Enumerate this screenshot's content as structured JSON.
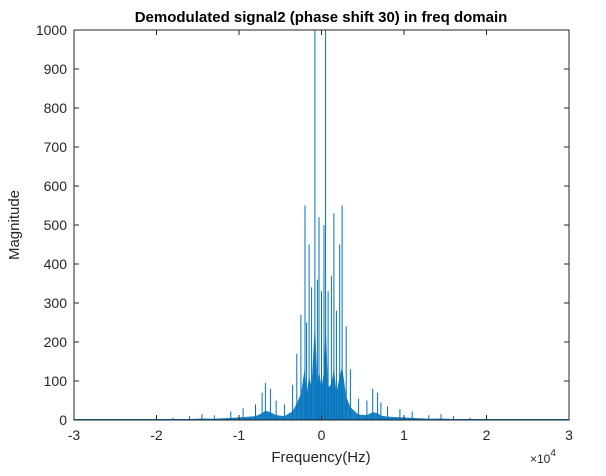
{
  "chart_data": {
    "type": "line",
    "title": "Demodulated signal2 (phase shift 30) in freq domain",
    "xlabel": "Frequency(Hz)",
    "ylabel": "Magnitude",
    "x_exponent_base": "×10",
    "x_exponent_power": "4",
    "xlim": [
      -3,
      3
    ],
    "ylim": [
      0,
      1000
    ],
    "x_ticks": [
      -3,
      -2,
      -1,
      0,
      1,
      2,
      3
    ],
    "x_tick_labels": [
      "-3",
      "-2",
      "-1",
      "0",
      "1",
      "2",
      "3"
    ],
    "y_ticks": [
      0,
      100,
      200,
      300,
      400,
      500,
      600,
      700,
      800,
      900,
      1000
    ],
    "y_tick_labels": [
      "0",
      "100",
      "200",
      "300",
      "400",
      "500",
      "600",
      "700",
      "800",
      "900",
      "1000"
    ],
    "grid": false,
    "color": "#0072BD",
    "series": [
      {
        "x": [
          -2.5,
          -2.0,
          -1.8,
          -1.6,
          -1.45,
          -1.3,
          -1.1,
          -0.95,
          -0.8,
          -0.72,
          -0.68,
          -0.62,
          -0.55,
          -0.45,
          -0.35,
          -0.3,
          -0.25,
          -0.2,
          -0.18,
          -0.15,
          -0.12,
          -0.08,
          -0.05,
          -0.03,
          0.0,
          0.03,
          0.05,
          0.08,
          0.12,
          0.15,
          0.18,
          0.22,
          0.25,
          0.3,
          0.35,
          0.45,
          0.55,
          0.62,
          0.68,
          0.72,
          0.8,
          0.95,
          1.1,
          1.3,
          1.45,
          1.6,
          1.8,
          2.0,
          2.5
        ],
        "y": [
          2,
          4,
          6,
          10,
          15,
          12,
          22,
          30,
          40,
          70,
          95,
          80,
          50,
          40,
          90,
          170,
          270,
          550,
          250,
          450,
          340,
          1000,
          360,
          520,
          330,
          500,
          1000,
          330,
          370,
          530,
          280,
          450,
          550,
          240,
          130,
          55,
          50,
          80,
          70,
          45,
          35,
          28,
          22,
          12,
          15,
          10,
          6,
          4,
          2
        ]
      }
    ]
  }
}
